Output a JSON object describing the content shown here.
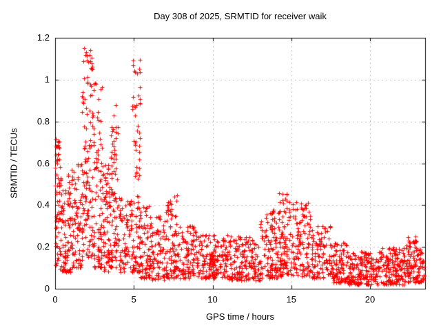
{
  "chart_data": {
    "type": "scatter",
    "title": "Day 308 of 2025, SRMTID for receiver waik",
    "xlabel": "GPS time / hours",
    "ylabel": "SRMTID / TECUs",
    "xlim": [
      0,
      23.5
    ],
    "ylim": [
      0,
      1.2
    ],
    "xtick_values": [
      0,
      5,
      10,
      15,
      20
    ],
    "xtick_labels": [
      "0",
      "5",
      "10",
      "15",
      "20"
    ],
    "ytick_values": [
      0,
      0.2,
      0.4,
      0.6,
      0.8,
      1,
      1.2
    ],
    "ytick_labels": [
      "0",
      "0.2",
      "0.4",
      "0.6",
      "0.8",
      "1",
      "1.2"
    ],
    "grid": true,
    "grid_color": "#b8b8b8",
    "border_color": "#000000",
    "marker": "plus",
    "marker_color": "#ff0000",
    "marker_size": 7,
    "seed": 308,
    "density_segments": [
      {
        "x0": 0.0,
        "x1": 0.3,
        "ymin": 0.1,
        "ymax": 0.72,
        "ytyp": 0.4,
        "count": 60
      },
      {
        "x0": 0.3,
        "x1": 1.0,
        "ymin": 0.08,
        "ymax": 0.55,
        "ytyp": 0.25,
        "count": 90
      },
      {
        "x0": 1.0,
        "x1": 1.7,
        "ymin": 0.1,
        "ymax": 0.6,
        "ytyp": 0.28,
        "count": 80
      },
      {
        "x0": 1.7,
        "x1": 2.4,
        "ymin": 0.15,
        "ymax": 1.16,
        "ytyp": 0.6,
        "count": 120
      },
      {
        "x0": 2.4,
        "x1": 3.0,
        "ymin": 0.1,
        "ymax": 1.0,
        "ytyp": 0.45,
        "count": 90
      },
      {
        "x0": 3.0,
        "x1": 3.5,
        "ymin": 0.08,
        "ymax": 0.6,
        "ytyp": 0.28,
        "count": 70
      },
      {
        "x0": 3.5,
        "x1": 4.0,
        "ymin": 0.1,
        "ymax": 0.88,
        "ytyp": 0.35,
        "count": 80
      },
      {
        "x0": 4.0,
        "x1": 4.9,
        "ymin": 0.08,
        "ymax": 0.45,
        "ytyp": 0.22,
        "count": 80
      },
      {
        "x0": 4.9,
        "x1": 5.4,
        "ymin": 0.08,
        "ymax": 1.1,
        "ytyp": 0.42,
        "count": 90
      },
      {
        "x0": 5.4,
        "x1": 6.0,
        "ymin": 0.05,
        "ymax": 0.4,
        "ytyp": 0.16,
        "count": 60
      },
      {
        "x0": 6.0,
        "x1": 7.0,
        "ymin": 0.04,
        "ymax": 0.35,
        "ytyp": 0.15,
        "count": 90
      },
      {
        "x0": 7.0,
        "x1": 7.8,
        "ymin": 0.05,
        "ymax": 0.45,
        "ytyp": 0.18,
        "count": 90
      },
      {
        "x0": 7.8,
        "x1": 9.0,
        "ymin": 0.05,
        "ymax": 0.3,
        "ytyp": 0.14,
        "count": 100
      },
      {
        "x0": 9.0,
        "x1": 11.0,
        "ymin": 0.05,
        "ymax": 0.26,
        "ytyp": 0.13,
        "count": 170
      },
      {
        "x0": 11.0,
        "x1": 13.0,
        "ymin": 0.04,
        "ymax": 0.25,
        "ytyp": 0.12,
        "count": 170
      },
      {
        "x0": 13.0,
        "x1": 14.2,
        "ymin": 0.05,
        "ymax": 0.38,
        "ytyp": 0.17,
        "count": 110
      },
      {
        "x0": 14.2,
        "x1": 15.2,
        "ymin": 0.06,
        "ymax": 0.47,
        "ytyp": 0.21,
        "count": 110
      },
      {
        "x0": 15.2,
        "x1": 16.2,
        "ymin": 0.06,
        "ymax": 0.42,
        "ytyp": 0.2,
        "count": 100
      },
      {
        "x0": 16.2,
        "x1": 17.5,
        "ymin": 0.05,
        "ymax": 0.3,
        "ytyp": 0.15,
        "count": 100
      },
      {
        "x0": 17.5,
        "x1": 18.5,
        "ymin": 0.03,
        "ymax": 0.22,
        "ytyp": 0.1,
        "count": 90
      },
      {
        "x0": 18.5,
        "x1": 20.5,
        "ymin": 0.02,
        "ymax": 0.18,
        "ytyp": 0.09,
        "count": 170
      },
      {
        "x0": 20.5,
        "x1": 22.3,
        "ymin": 0.02,
        "ymax": 0.2,
        "ytyp": 0.1,
        "count": 160
      },
      {
        "x0": 22.3,
        "x1": 23.0,
        "ymin": 0.03,
        "ymax": 0.26,
        "ytyp": 0.12,
        "count": 80
      },
      {
        "x0": 23.0,
        "x1": 23.4,
        "ymin": 0.03,
        "ymax": 0.2,
        "ytyp": 0.1,
        "count": 40
      }
    ]
  }
}
